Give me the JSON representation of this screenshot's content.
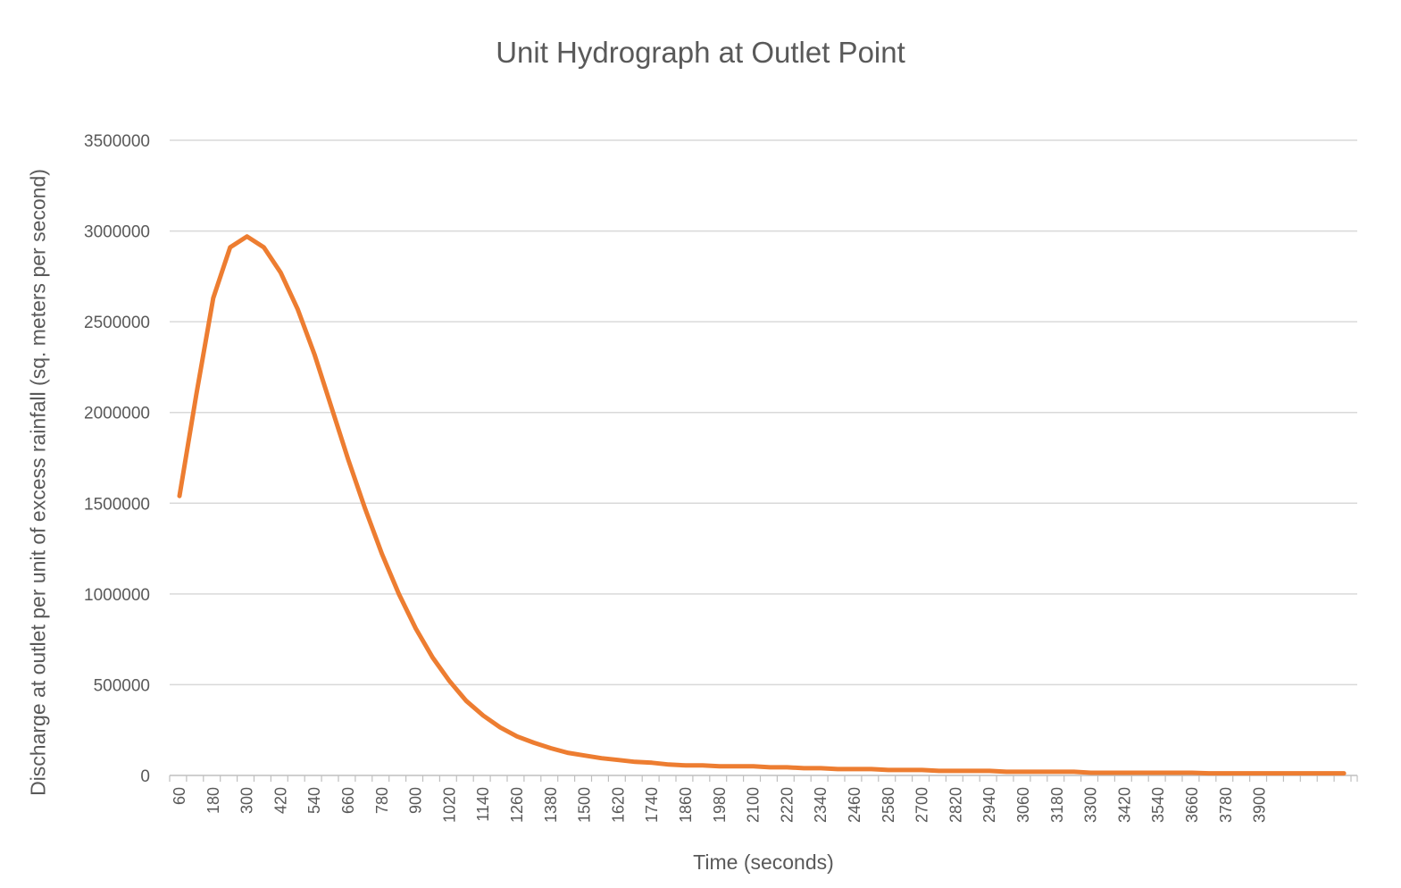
{
  "chart_data": {
    "type": "line",
    "title": "Unit Hydrograph at Outlet Point",
    "xlabel": "Time (seconds)",
    "ylabel": "Discharge at outlet per unit of excess rainfall (sq. meters per second)",
    "ylim": [
      0,
      3500000
    ],
    "yticks": [
      "0",
      "500000",
      "1000000",
      "1500000",
      "2000000",
      "2500000",
      "3000000",
      "3500000"
    ],
    "xtick_labels": [
      "60",
      "180",
      "300",
      "420",
      "540",
      "660",
      "780",
      "900",
      "1020",
      "1140",
      "1260",
      "1380",
      "1500",
      "1620",
      "1740",
      "1860",
      "1980",
      "2100",
      "2220",
      "2340",
      "2460",
      "2580",
      "2700",
      "2820",
      "2940",
      "3060",
      "3180",
      "3300",
      "3420",
      "3540",
      "3660",
      "3780",
      "3900"
    ],
    "grid": "horizontal",
    "color": "#ED7D31",
    "series": [
      {
        "x": [
          60,
          120,
          180,
          240,
          300,
          360,
          420,
          480,
          540,
          600,
          660,
          720,
          780,
          840,
          900,
          960,
          1020,
          1080,
          1140,
          1200,
          1260,
          1320,
          1380,
          1440,
          1500,
          1560,
          1620,
          1680,
          1740,
          1800,
          1860,
          1920,
          1980,
          2040,
          2100,
          2160,
          2220,
          2280,
          2340,
          2400,
          2460,
          2520,
          2580,
          2640,
          2700,
          2760,
          2820,
          2880,
          2940,
          3000,
          3060,
          3120,
          3180,
          3240,
          3300,
          3360,
          3420,
          3480,
          3540,
          3600,
          3660,
          3720,
          3780,
          3840,
          3900,
          3960,
          4020,
          4080,
          4140,
          4200
        ],
        "values": [
          1540000,
          2100000,
          2630000,
          2910000,
          2970000,
          2910000,
          2770000,
          2570000,
          2320000,
          2030000,
          1740000,
          1470000,
          1220000,
          1000000,
          810000,
          650000,
          520000,
          410000,
          330000,
          265000,
          215000,
          180000,
          150000,
          125000,
          110000,
          95000,
          85000,
          75000,
          70000,
          60000,
          55000,
          55000,
          50000,
          50000,
          50000,
          45000,
          45000,
          40000,
          40000,
          35000,
          35000,
          35000,
          30000,
          30000,
          30000,
          25000,
          25000,
          25000,
          25000,
          20000,
          20000,
          20000,
          20000,
          20000,
          15000,
          15000,
          15000,
          15000,
          15000,
          15000,
          15000,
          12000,
          12000,
          12000,
          12000,
          12000,
          12000,
          12000,
          12000,
          12000
        ]
      }
    ]
  }
}
